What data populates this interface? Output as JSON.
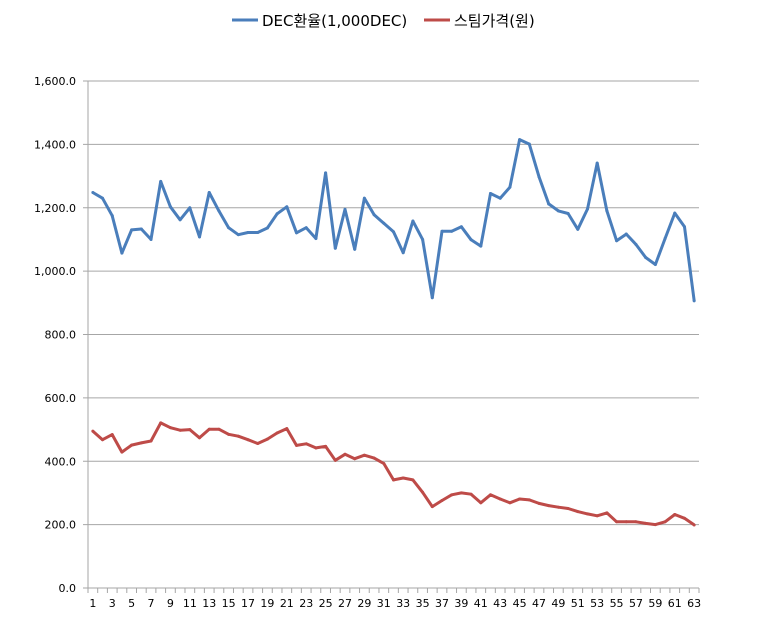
{
  "chart_data": {
    "type": "line",
    "title": "",
    "xlabel": "",
    "ylabel": "",
    "ylim": [
      0,
      1600
    ],
    "y_ticks": [
      "0.0",
      "200.0",
      "400.0",
      "600.0",
      "800.0",
      "1,000.0",
      "1,200.0",
      "1,400.0",
      "1,600.0"
    ],
    "y_tick_values": [
      0,
      200,
      400,
      600,
      800,
      1000,
      1200,
      1400,
      1600
    ],
    "grid": "horizontal",
    "legend_position": "top",
    "categories": [
      1,
      2,
      3,
      4,
      5,
      6,
      7,
      8,
      9,
      10,
      11,
      12,
      13,
      14,
      15,
      16,
      17,
      18,
      19,
      20,
      21,
      22,
      23,
      24,
      25,
      26,
      27,
      28,
      29,
      30,
      31,
      32,
      33,
      34,
      35,
      36,
      37,
      38,
      39,
      40,
      41,
      42,
      43,
      44,
      45,
      46,
      47,
      48,
      49,
      50,
      51,
      52,
      53,
      54,
      55,
      56,
      57,
      58,
      59,
      60,
      61,
      62,
      63
    ],
    "x_tick_labels": [
      "1",
      "3",
      "5",
      "7",
      "9",
      "11",
      "13",
      "15",
      "17",
      "19",
      "21",
      "23",
      "25",
      "27",
      "29",
      "31",
      "33",
      "35",
      "37",
      "39",
      "41",
      "43",
      "45",
      "47",
      "49",
      "51",
      "53",
      "55",
      "57",
      "59",
      "61",
      "63"
    ],
    "series": [
      {
        "name": "DEC환율(1,000DEC)",
        "color": "#4a7ebb",
        "values": [
          1248,
          1230,
          1175,
          1057,
          1130,
          1133,
          1100,
          1283,
          1203,
          1162,
          1200,
          1108,
          1248,
          1190,
          1137,
          1115,
          1122,
          1122,
          1136,
          1181,
          1203,
          1121,
          1137,
          1103,
          1310,
          1072,
          1195,
          1069,
          1230,
          1178,
          1151,
          1124,
          1058,
          1158,
          1100,
          916,
          1126,
          1126,
          1140,
          1099,
          1079,
          1245,
          1230,
          1265,
          1415,
          1401,
          1298,
          1212,
          1190,
          1182,
          1132,
          1196,
          1341,
          1190,
          1096,
          1117,
          1084,
          1043,
          1021,
          1103,
          1183,
          1140,
          906
        ]
      },
      {
        "name": "스팀가격(원)",
        "color": "#be4b48",
        "values": [
          495,
          468,
          484,
          429,
          451,
          458,
          464,
          521,
          506,
          498,
          500,
          474,
          501,
          501,
          485,
          479,
          468,
          456,
          470,
          489,
          503,
          450,
          455,
          442,
          447,
          403,
          422,
          408,
          419,
          410,
          393,
          341,
          347,
          341,
          302,
          257,
          276,
          294,
          300,
          296,
          269,
          294,
          281,
          269,
          281,
          278,
          267,
          260,
          255,
          251,
          241,
          234,
          228,
          237,
          209,
          209,
          209,
          204,
          200,
          209,
          232,
          220,
          199
        ]
      }
    ]
  }
}
